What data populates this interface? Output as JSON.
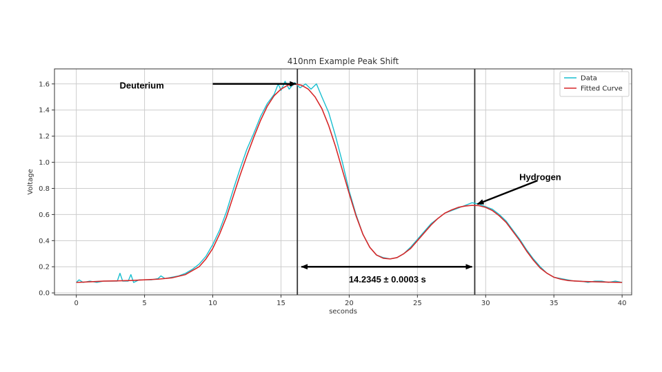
{
  "chart_data": {
    "type": "line",
    "title": "410nm Example Peak Shift",
    "xlabel": "seconds",
    "ylabel": "Voltage",
    "xlim": [
      -1.6,
      40.7
    ],
    "ylim": [
      -0.015,
      1.715
    ],
    "x_ticks": [
      0,
      5,
      10,
      15,
      20,
      25,
      30,
      35,
      40
    ],
    "y_ticks": [
      0.0,
      0.2,
      0.4,
      0.6,
      0.8,
      1.0,
      1.2,
      1.4,
      1.6
    ],
    "x_tick_labels": [
      "0",
      "5",
      "10",
      "15",
      "20",
      "25",
      "30",
      "35",
      "40"
    ],
    "y_tick_labels": [
      "0.0",
      "0.2",
      "0.4",
      "0.6",
      "0.8",
      "1.0",
      "1.2",
      "1.4",
      "1.6"
    ],
    "grid": true,
    "legend_position": "top-right",
    "colors": {
      "data": "#17becf",
      "fit": "#d62728",
      "vline": "#333333",
      "grid": "#cccccc"
    },
    "series": [
      {
        "name": "Data",
        "points": [
          [
            0,
            0.08
          ],
          [
            0.2,
            0.1
          ],
          [
            0.5,
            0.08
          ],
          [
            1,
            0.09
          ],
          [
            1.5,
            0.08
          ],
          [
            2,
            0.09
          ],
          [
            2.5,
            0.09
          ],
          [
            3,
            0.09
          ],
          [
            3.2,
            0.15
          ],
          [
            3.4,
            0.09
          ],
          [
            3.8,
            0.09
          ],
          [
            4,
            0.14
          ],
          [
            4.2,
            0.08
          ],
          [
            4.6,
            0.1
          ],
          [
            5,
            0.1
          ],
          [
            5.5,
            0.1
          ],
          [
            6,
            0.11
          ],
          [
            6.2,
            0.13
          ],
          [
            6.5,
            0.11
          ],
          [
            7,
            0.12
          ],
          [
            7.5,
            0.13
          ],
          [
            8,
            0.15
          ],
          [
            8.5,
            0.18
          ],
          [
            9,
            0.22
          ],
          [
            9.5,
            0.28
          ],
          [
            10,
            0.37
          ],
          [
            10.5,
            0.48
          ],
          [
            11,
            0.62
          ],
          [
            11.5,
            0.79
          ],
          [
            12,
            0.95
          ],
          [
            12.5,
            1.1
          ],
          [
            13,
            1.22
          ],
          [
            13.5,
            1.35
          ],
          [
            14,
            1.45
          ],
          [
            14.5,
            1.52
          ],
          [
            14.8,
            1.6
          ],
          [
            15,
            1.55
          ],
          [
            15.3,
            1.62
          ],
          [
            15.6,
            1.56
          ],
          [
            16,
            1.61
          ],
          [
            16.4,
            1.57
          ],
          [
            16.8,
            1.6
          ],
          [
            17.2,
            1.56
          ],
          [
            17.6,
            1.6
          ],
          [
            18,
            1.5
          ],
          [
            18.5,
            1.38
          ],
          [
            19,
            1.2
          ],
          [
            19.5,
            1.0
          ],
          [
            20,
            0.78
          ],
          [
            20.5,
            0.6
          ],
          [
            21,
            0.45
          ],
          [
            21.5,
            0.35
          ],
          [
            22,
            0.29
          ],
          [
            22.5,
            0.27
          ],
          [
            23,
            0.26
          ],
          [
            23.5,
            0.27
          ],
          [
            24,
            0.3
          ],
          [
            24.5,
            0.35
          ],
          [
            25,
            0.41
          ],
          [
            25.5,
            0.47
          ],
          [
            26,
            0.53
          ],
          [
            26.5,
            0.57
          ],
          [
            27,
            0.61
          ],
          [
            27.5,
            0.63
          ],
          [
            28,
            0.65
          ],
          [
            28.5,
            0.67
          ],
          [
            29,
            0.69
          ],
          [
            29.5,
            0.68
          ],
          [
            30,
            0.66
          ],
          [
            30.5,
            0.64
          ],
          [
            31,
            0.6
          ],
          [
            31.5,
            0.55
          ],
          [
            32,
            0.48
          ],
          [
            32.5,
            0.41
          ],
          [
            33,
            0.33
          ],
          [
            33.5,
            0.26
          ],
          [
            34,
            0.2
          ],
          [
            34.5,
            0.15
          ],
          [
            35,
            0.12
          ],
          [
            35.5,
            0.11
          ],
          [
            36,
            0.1
          ],
          [
            36.5,
            0.09
          ],
          [
            37,
            0.09
          ],
          [
            37.5,
            0.08
          ],
          [
            38,
            0.09
          ],
          [
            38.5,
            0.09
          ],
          [
            39,
            0.08
          ],
          [
            39.5,
            0.09
          ],
          [
            40,
            0.08
          ]
        ]
      },
      {
        "name": "Fitted Curve",
        "points": [
          [
            0,
            0.08
          ],
          [
            1,
            0.085
          ],
          [
            2,
            0.09
          ],
          [
            3,
            0.092
          ],
          [
            4,
            0.095
          ],
          [
            5,
            0.1
          ],
          [
            6,
            0.105
          ],
          [
            7,
            0.115
          ],
          [
            8,
            0.14
          ],
          [
            9,
            0.2
          ],
          [
            9.5,
            0.26
          ],
          [
            10,
            0.34
          ],
          [
            10.5,
            0.45
          ],
          [
            11,
            0.58
          ],
          [
            11.5,
            0.74
          ],
          [
            12,
            0.9
          ],
          [
            12.5,
            1.05
          ],
          [
            13,
            1.19
          ],
          [
            13.5,
            1.32
          ],
          [
            14,
            1.43
          ],
          [
            14.5,
            1.51
          ],
          [
            15,
            1.56
          ],
          [
            15.5,
            1.59
          ],
          [
            16,
            1.6
          ],
          [
            16.5,
            1.59
          ],
          [
            17,
            1.56
          ],
          [
            17.5,
            1.5
          ],
          [
            18,
            1.41
          ],
          [
            18.5,
            1.28
          ],
          [
            19,
            1.12
          ],
          [
            19.5,
            0.94
          ],
          [
            20,
            0.76
          ],
          [
            20.5,
            0.59
          ],
          [
            21,
            0.45
          ],
          [
            21.5,
            0.35
          ],
          [
            22,
            0.29
          ],
          [
            22.5,
            0.265
          ],
          [
            23,
            0.26
          ],
          [
            23.5,
            0.27
          ],
          [
            24,
            0.3
          ],
          [
            24.5,
            0.34
          ],
          [
            25,
            0.4
          ],
          [
            25.5,
            0.46
          ],
          [
            26,
            0.52
          ],
          [
            26.5,
            0.57
          ],
          [
            27,
            0.61
          ],
          [
            27.5,
            0.635
          ],
          [
            28,
            0.655
          ],
          [
            28.5,
            0.665
          ],
          [
            29,
            0.67
          ],
          [
            29.5,
            0.668
          ],
          [
            30,
            0.655
          ],
          [
            30.5,
            0.63
          ],
          [
            31,
            0.59
          ],
          [
            31.5,
            0.54
          ],
          [
            32,
            0.47
          ],
          [
            32.5,
            0.4
          ],
          [
            33,
            0.32
          ],
          [
            33.5,
            0.25
          ],
          [
            34,
            0.19
          ],
          [
            34.5,
            0.15
          ],
          [
            35,
            0.12
          ],
          [
            35.5,
            0.105
          ],
          [
            36,
            0.095
          ],
          [
            37,
            0.088
          ],
          [
            38,
            0.085
          ],
          [
            39,
            0.082
          ],
          [
            40,
            0.08
          ]
        ]
      }
    ],
    "vertical_lines": [
      16.2,
      29.2
    ],
    "annotations": [
      {
        "text": "Deuterium",
        "text_x": 4.8,
        "text_y": 1.585,
        "arrow_from": [
          10,
          1.6
        ],
        "arrow_to": [
          16.1,
          1.6
        ]
      },
      {
        "text": "Hydrogen",
        "text_x": 34,
        "text_y": 0.885,
        "arrow_from": [
          33.8,
          0.86
        ],
        "arrow_to": [
          29.4,
          0.68
        ]
      }
    ],
    "span_annotation": {
      "text": "14.2345 ± 0.0003 s",
      "x_from": 16.5,
      "x_to": 29.0,
      "y": 0.2,
      "text_x": 22.8,
      "text_y": 0.1
    }
  }
}
